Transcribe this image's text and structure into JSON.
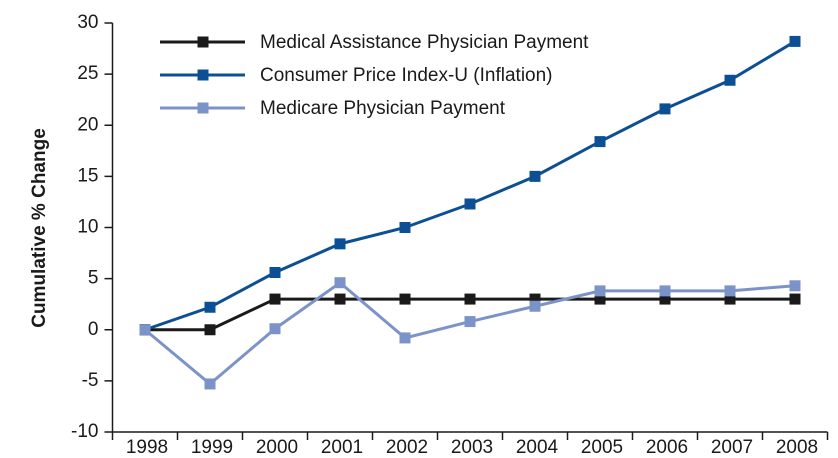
{
  "chart_data": {
    "type": "line",
    "y_label": "Cumulative % Change",
    "categories": [
      "1998",
      "1999",
      "2000",
      "2001",
      "2002",
      "2003",
      "2004",
      "2005",
      "2006",
      "2007",
      "2008"
    ],
    "series": [
      {
        "name": "Medical Assistance Physician Payment",
        "color": "#1a1a1a",
        "values": [
          0,
          0,
          3,
          3,
          3,
          3,
          3,
          3,
          3,
          3,
          3
        ]
      },
      {
        "name": "Consumer Price Index-U (Inflation)",
        "color": "#0d4f94",
        "values": [
          0,
          2.2,
          5.6,
          8.4,
          10,
          12.3,
          15,
          18.4,
          21.6,
          24.4,
          28.2
        ]
      },
      {
        "name": "Medicare Physician Payment",
        "color": "#7b93c8",
        "values": [
          0,
          -5.3,
          0.1,
          4.6,
          -0.8,
          0.8,
          2.3,
          3.8,
          3.8,
          3.8,
          4.3
        ]
      }
    ],
    "ylim": [
      -10,
      30
    ],
    "yticks": [
      -10,
      -5,
      0,
      5,
      10,
      15,
      20,
      25,
      30
    ],
    "legend": "upper left"
  }
}
